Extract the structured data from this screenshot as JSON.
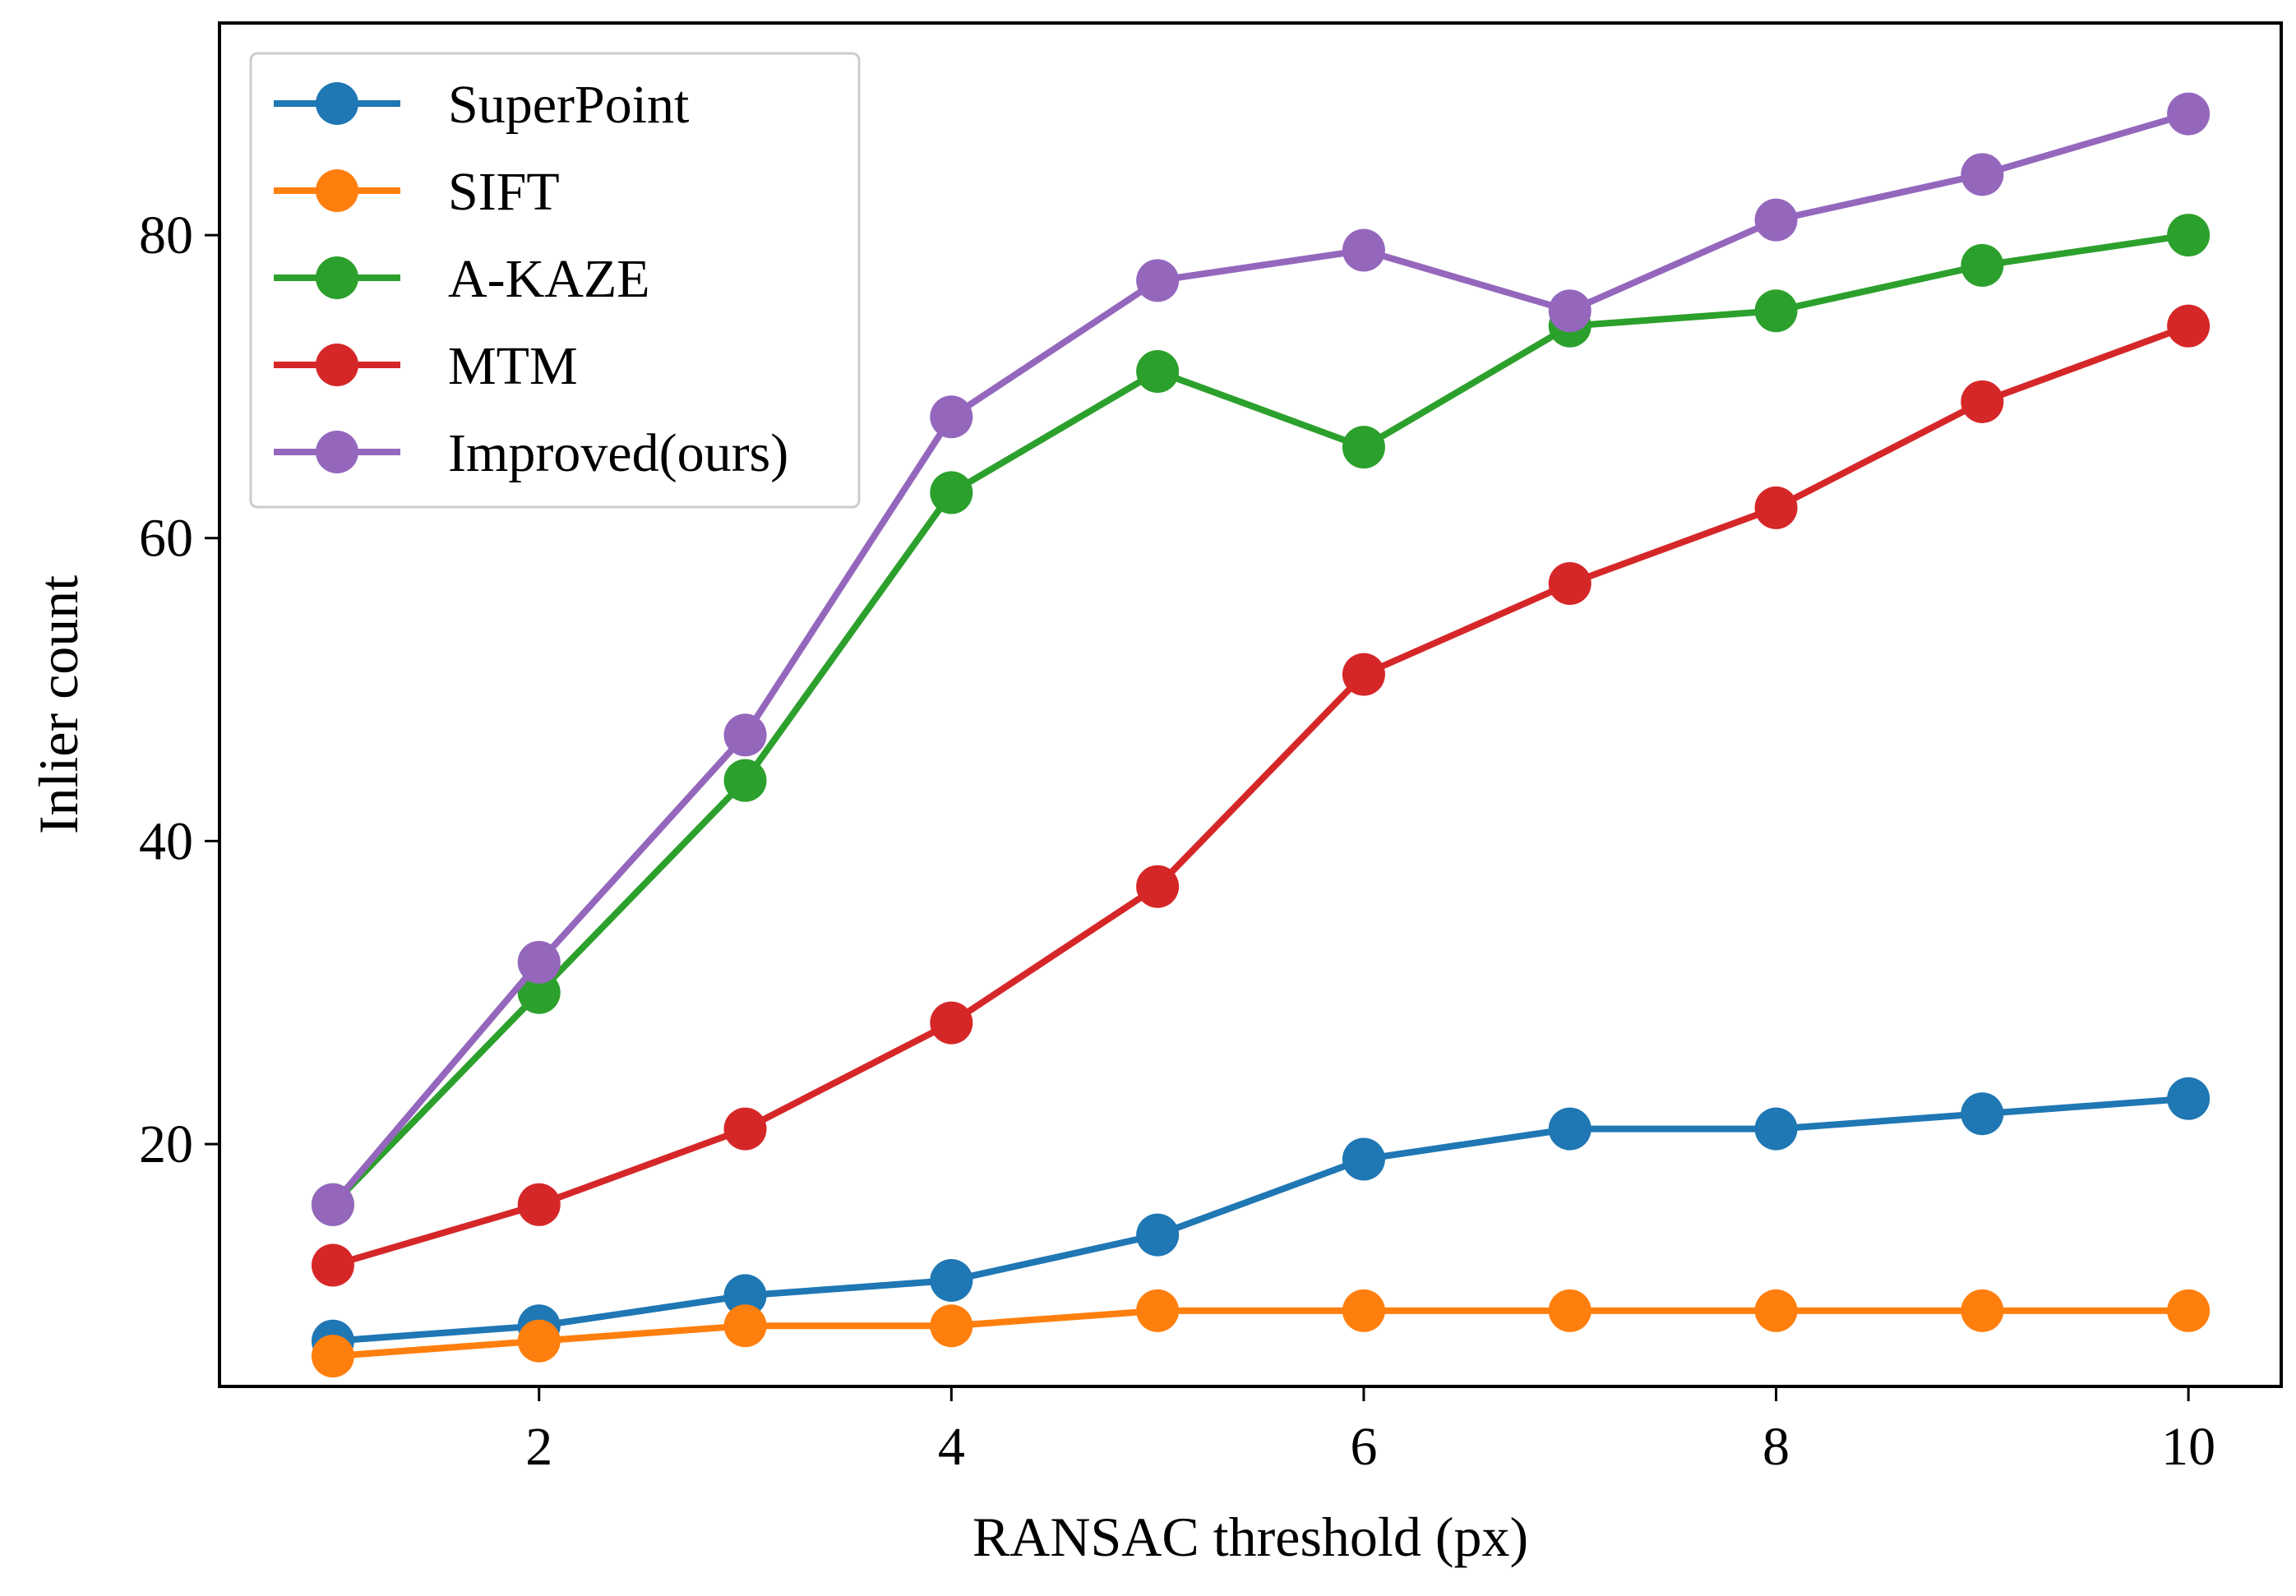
{
  "chart_data": {
    "type": "line",
    "title": "",
    "xlabel": "RANSAC threshold (px)",
    "ylabel": "Inlier count",
    "x": [
      1,
      2,
      3,
      4,
      5,
      6,
      7,
      8,
      9,
      10
    ],
    "xlim": [
      0.45,
      10.45
    ],
    "ylim": [
      4,
      94
    ],
    "xticks": [
      2,
      4,
      6,
      8,
      10
    ],
    "yticks": [
      20,
      40,
      60,
      80
    ],
    "grid": false,
    "legend_position": "upper-left",
    "series": [
      {
        "name": "SuperPoint",
        "color": "#1f77b4",
        "values": [
          7,
          8,
          10,
          11,
          14,
          19,
          21,
          21,
          22,
          23
        ]
      },
      {
        "name": "SIFT",
        "color": "#ff7f0e",
        "values": [
          6,
          7,
          8,
          8,
          9,
          9,
          9,
          9,
          9,
          9
        ]
      },
      {
        "name": "A-KAZE",
        "color": "#2ca02c",
        "values": [
          16,
          30,
          44,
          63,
          71,
          66,
          74,
          75,
          78,
          80
        ]
      },
      {
        "name": "MTM",
        "color": "#d62728",
        "values": [
          12,
          16,
          21,
          28,
          37,
          51,
          57,
          62,
          69,
          74
        ]
      },
      {
        "name": "Improved(ours)",
        "color": "#9467bd",
        "values": [
          16,
          32,
          47,
          68,
          77,
          79,
          75,
          81,
          84,
          88
        ]
      }
    ]
  }
}
